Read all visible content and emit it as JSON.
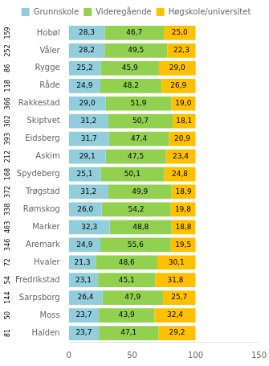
{
  "chart_data": {
    "type": "bar",
    "orientation": "horizontal",
    "stacked": true,
    "categories": [
      "Hobøl",
      "Våler",
      "Rygge",
      "Råde",
      "Rakkestad",
      "Skiptvet",
      "Eidsberg",
      "Askim",
      "Spydeberg",
      "Trøgstad",
      "Rømskog",
      "Marker",
      "Aremark",
      "Hvaler",
      "Fredrikstad",
      "Sarpsborg",
      "Moss",
      "Halden"
    ],
    "series": [
      {
        "name": "Grunnskole",
        "color": "#92CDDC",
        "values": [
          28.3,
          28.2,
          25.2,
          24.9,
          29.0,
          31.2,
          31.7,
          29.1,
          25.1,
          31.2,
          26.0,
          32.3,
          24.9,
          21.3,
          23.1,
          26.4,
          23.7,
          23.7
        ],
        "value_labels": [
          "28,3",
          "28,2",
          "25,2",
          "24,9",
          "29,0",
          "31,2",
          "31,7",
          "29,1",
          "25,1",
          "31,2",
          "26,0",
          "32,3",
          "24,9",
          "21,3",
          "23,1",
          "26,4",
          "23,7",
          "23,7"
        ]
      },
      {
        "name": "Videregående",
        "color": "#92D050",
        "values": [
          46.7,
          49.5,
          45.9,
          48.2,
          51.9,
          50.7,
          47.4,
          47.5,
          50.1,
          49.9,
          54.2,
          48.8,
          55.6,
          48.6,
          45.1,
          47.9,
          43.9,
          47.1
        ],
        "value_labels": [
          "46,7",
          "49,5",
          "45,9",
          "48,2",
          "51,9",
          "50,7",
          "47,4",
          "47,5",
          "50,1",
          "49,9",
          "54,2",
          "48,8",
          "55,6",
          "48,6",
          "45,1",
          "47,9",
          "43,9",
          "47,1"
        ]
      },
      {
        "name": "Høgskole/universitet",
        "color": "#FFC000",
        "values": [
          25.0,
          22.3,
          29.0,
          26.9,
          19.0,
          18.1,
          20.9,
          23.4,
          24.8,
          18.9,
          19.8,
          18.8,
          19.5,
          30.1,
          31.8,
          25.7,
          32.4,
          29.2
        ],
        "value_labels": [
          "25,0",
          "22,3",
          "29,0",
          "26,9",
          "19,0",
          "18,1",
          "20,9",
          "23,4",
          "24,8",
          "18,9",
          "19,8",
          "18,8",
          "19,5",
          "30,1",
          "31,8",
          "25,7",
          "32,4",
          "29,2"
        ]
      }
    ],
    "xlim": [
      0,
      150
    ],
    "xticks": [
      0,
      50,
      100,
      150
    ],
    "grid": false,
    "legend": "top",
    "data_labels": true,
    "annotations": [
      {
        "text": "159",
        "category": "Hobøl"
      },
      {
        "text": "252",
        "category": "Våler"
      },
      {
        "text": "86",
        "category": "Rygge"
      },
      {
        "text": "118",
        "category": "Råde"
      },
      {
        "text": "366",
        "category": "Rakkestad"
      },
      {
        "text": "302",
        "category": "Skiptvet"
      },
      {
        "text": "393",
        "category": "Eidsberg"
      },
      {
        "text": "212",
        "category": "Askim"
      },
      {
        "text": "168",
        "category": "Spydeberg"
      },
      {
        "text": "372",
        "category": "Trøgstad"
      },
      {
        "text": "338",
        "category": "Rømskog"
      },
      {
        "text": "463",
        "category": "Marker"
      },
      {
        "text": "346",
        "category": "Aremark"
      },
      {
        "text": "72",
        "category": "Hvaler"
      },
      {
        "text": "54",
        "category": "Fredrikstad"
      },
      {
        "text": "144",
        "category": "Sarpsborg"
      },
      {
        "text": "50",
        "category": "Moss"
      },
      {
        "text": "81",
        "category": "Halden"
      }
    ]
  }
}
